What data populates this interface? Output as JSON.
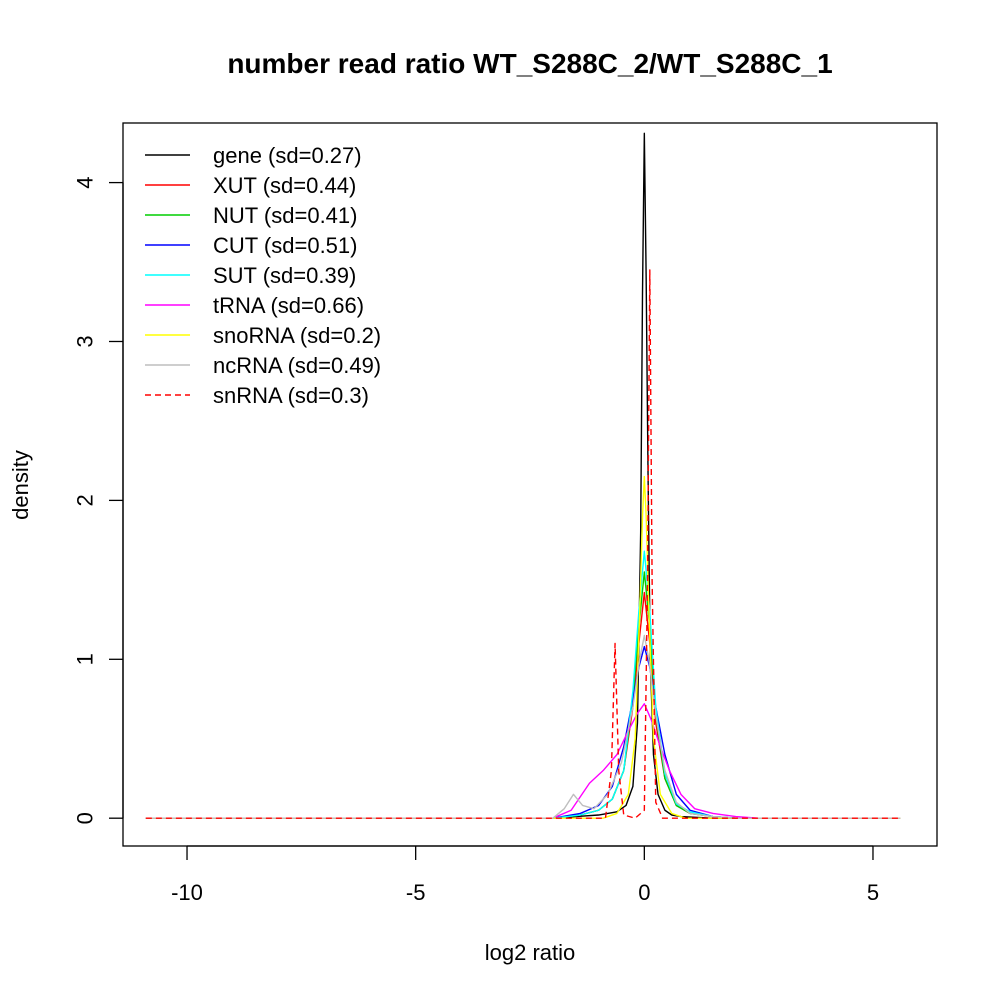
{
  "chart_data": {
    "type": "line",
    "title": "number read ratio WT_S288C_2/WT_S288C_1",
    "xlabel": "log2 ratio",
    "ylabel": "density",
    "xlim": [
      -11.4,
      6.4
    ],
    "ylim": [
      -0.175,
      4.375
    ],
    "xticks": [
      -10,
      -5,
      0,
      5
    ],
    "yticks": [
      0,
      1,
      2,
      3,
      4
    ],
    "grid": false,
    "legend_position": "top-left",
    "series": [
      {
        "name": "gene (sd=0.27)",
        "color": "#000000",
        "dash": "solid",
        "points": [
          [
            -10.9,
            0
          ],
          [
            -2,
            0
          ],
          [
            -1.5,
            0.01
          ],
          [
            -1,
            0.02
          ],
          [
            -0.6,
            0.04
          ],
          [
            -0.4,
            0.08
          ],
          [
            -0.25,
            0.2
          ],
          [
            -0.15,
            0.6
          ],
          [
            -0.08,
            1.8
          ],
          [
            -0.04,
            3.3
          ],
          [
            0,
            4.31
          ],
          [
            0.04,
            3.4
          ],
          [
            0.08,
            2.2
          ],
          [
            0.13,
            1.0
          ],
          [
            0.2,
            0.4
          ],
          [
            0.3,
            0.15
          ],
          [
            0.45,
            0.05
          ],
          [
            0.6,
            0.02
          ],
          [
            0.8,
            0.01
          ],
          [
            1.5,
            0
          ],
          [
            5.6,
            0
          ]
        ]
      },
      {
        "name": "XUT (sd=0.44)",
        "color": "#ff0000",
        "dash": "solid",
        "points": [
          [
            -10.9,
            0
          ],
          [
            -2,
            0
          ],
          [
            -1.4,
            0.02
          ],
          [
            -1,
            0.05
          ],
          [
            -0.7,
            0.12
          ],
          [
            -0.45,
            0.3
          ],
          [
            -0.25,
            0.7
          ],
          [
            -0.12,
            1.1
          ],
          [
            0,
            1.42
          ],
          [
            0.12,
            1.1
          ],
          [
            0.25,
            0.6
          ],
          [
            0.45,
            0.25
          ],
          [
            0.7,
            0.08
          ],
          [
            1.0,
            0.03
          ],
          [
            1.5,
            0.01
          ],
          [
            2,
            0
          ],
          [
            5.6,
            0
          ]
        ]
      },
      {
        "name": "NUT (sd=0.41)",
        "color": "#00cd00",
        "dash": "solid",
        "points": [
          [
            -10.9,
            0
          ],
          [
            -2,
            0
          ],
          [
            -1.4,
            0.02
          ],
          [
            -1,
            0.05
          ],
          [
            -0.7,
            0.12
          ],
          [
            -0.45,
            0.3
          ],
          [
            -0.25,
            0.75
          ],
          [
            -0.12,
            1.2
          ],
          [
            0,
            1.55
          ],
          [
            0.12,
            1.2
          ],
          [
            0.25,
            0.65
          ],
          [
            0.45,
            0.25
          ],
          [
            0.7,
            0.08
          ],
          [
            1.0,
            0.03
          ],
          [
            1.5,
            0.01
          ],
          [
            2,
            0
          ],
          [
            5.6,
            0
          ]
        ]
      },
      {
        "name": "CUT (sd=0.51)",
        "color": "#0000ff",
        "dash": "solid",
        "points": [
          [
            -10.9,
            0
          ],
          [
            -2,
            0
          ],
          [
            -1.4,
            0.03
          ],
          [
            -1,
            0.08
          ],
          [
            -0.7,
            0.2
          ],
          [
            -0.45,
            0.45
          ],
          [
            -0.25,
            0.75
          ],
          [
            -0.12,
            0.95
          ],
          [
            0,
            1.08
          ],
          [
            0.12,
            0.95
          ],
          [
            0.25,
            0.7
          ],
          [
            0.45,
            0.4
          ],
          [
            0.7,
            0.15
          ],
          [
            1.0,
            0.05
          ],
          [
            1.5,
            0.01
          ],
          [
            2,
            0
          ],
          [
            5.6,
            0
          ]
        ]
      },
      {
        "name": "SUT (sd=0.39)",
        "color": "#00ffff",
        "dash": "solid",
        "points": [
          [
            -10.9,
            0
          ],
          [
            -2,
            0
          ],
          [
            -1.4,
            0.02
          ],
          [
            -1,
            0.05
          ],
          [
            -0.7,
            0.12
          ],
          [
            -0.45,
            0.3
          ],
          [
            -0.25,
            0.8
          ],
          [
            -0.12,
            1.3
          ],
          [
            0,
            1.68
          ],
          [
            0.12,
            1.3
          ],
          [
            0.25,
            0.7
          ],
          [
            0.45,
            0.28
          ],
          [
            0.7,
            0.09
          ],
          [
            1.0,
            0.04
          ],
          [
            1.5,
            0.01
          ],
          [
            2,
            0
          ],
          [
            5.6,
            0
          ]
        ]
      },
      {
        "name": "tRNA (sd=0.66)",
        "color": "#ff00ff",
        "dash": "solid",
        "points": [
          [
            -10.9,
            0
          ],
          [
            -2,
            0
          ],
          [
            -1.6,
            0.05
          ],
          [
            -1.2,
            0.22
          ],
          [
            -0.9,
            0.3
          ],
          [
            -0.6,
            0.4
          ],
          [
            -0.35,
            0.55
          ],
          [
            -0.15,
            0.66
          ],
          [
            0,
            0.72
          ],
          [
            0.15,
            0.62
          ],
          [
            0.35,
            0.45
          ],
          [
            0.55,
            0.3
          ],
          [
            0.8,
            0.15
          ],
          [
            1.1,
            0.06
          ],
          [
            1.5,
            0.03
          ],
          [
            2,
            0.01
          ],
          [
            2.5,
            0
          ],
          [
            5.6,
            0
          ]
        ]
      },
      {
        "name": "snoRNA (sd=0.2)",
        "color": "#ffff00",
        "dash": "solid",
        "points": [
          [
            -10.9,
            0
          ],
          [
            -0.9,
            0
          ],
          [
            -0.6,
            0.03
          ],
          [
            -0.35,
            0.15
          ],
          [
            -0.2,
            0.5
          ],
          [
            -0.1,
            1.3
          ],
          [
            -0.04,
            1.9
          ],
          [
            0,
            2.15
          ],
          [
            0.04,
            1.9
          ],
          [
            0.1,
            1.3
          ],
          [
            0.2,
            0.5
          ],
          [
            0.35,
            0.15
          ],
          [
            0.6,
            0.03
          ],
          [
            0.9,
            0
          ],
          [
            5.6,
            0
          ]
        ]
      },
      {
        "name": "ncRNA (sd=0.49)",
        "color": "#bebebe",
        "dash": "solid",
        "points": [
          [
            -10.9,
            0
          ],
          [
            -2,
            0
          ],
          [
            -1.75,
            0.06
          ],
          [
            -1.55,
            0.15
          ],
          [
            -1.35,
            0.08
          ],
          [
            -1.1,
            0.06
          ],
          [
            -0.8,
            0.15
          ],
          [
            -0.5,
            0.35
          ],
          [
            -0.25,
            0.7
          ],
          [
            -0.1,
            1.0
          ],
          [
            0,
            1.15
          ],
          [
            0.1,
            1.0
          ],
          [
            0.25,
            0.65
          ],
          [
            0.45,
            0.3
          ],
          [
            0.7,
            0.1
          ],
          [
            1.0,
            0.03
          ],
          [
            1.5,
            0.01
          ],
          [
            2,
            0
          ],
          [
            5.6,
            0
          ]
        ]
      },
      {
        "name": "snRNA (sd=0.3)",
        "color": "#ff0000",
        "dash": "dashed",
        "points": [
          [
            -10.9,
            0
          ],
          [
            -0.85,
            0
          ],
          [
            -0.72,
            0.3
          ],
          [
            -0.64,
            1.1
          ],
          [
            -0.56,
            0.3
          ],
          [
            -0.45,
            0.02
          ],
          [
            -0.2,
            0
          ],
          [
            0,
            0.05
          ],
          [
            0.07,
            1.5
          ],
          [
            0.12,
            3.45
          ],
          [
            0.17,
            1.5
          ],
          [
            0.25,
            0.1
          ],
          [
            0.4,
            0
          ],
          [
            5.6,
            0
          ]
        ]
      }
    ]
  }
}
